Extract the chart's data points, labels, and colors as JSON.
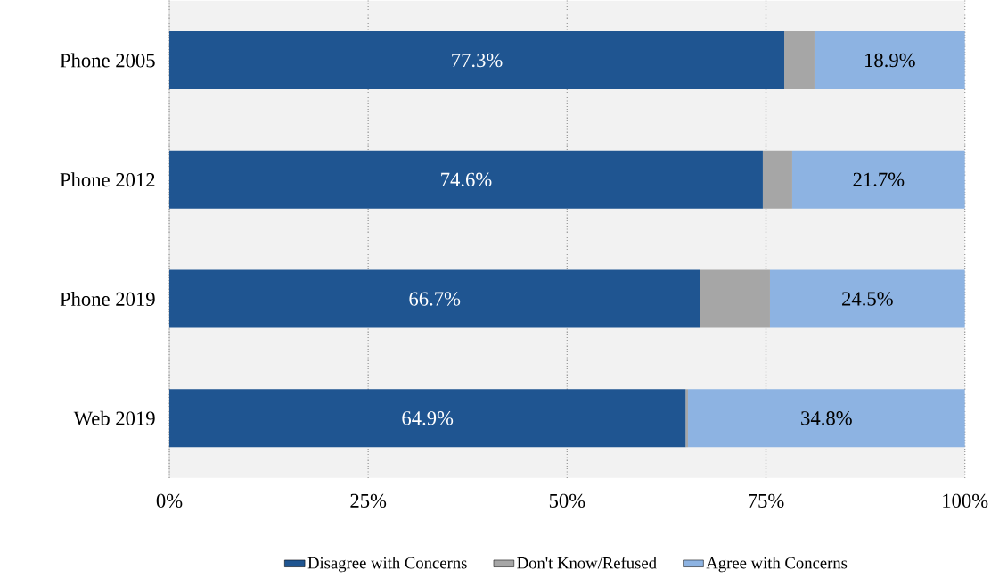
{
  "chart_data": {
    "type": "bar",
    "orientation": "horizontal",
    "stacked": true,
    "categories": [
      "Phone 2005",
      "Phone 2012",
      "Phone 2019",
      "Web 2019"
    ],
    "series": [
      {
        "name": "Disagree with Concerns",
        "color": "#1f5591",
        "values": [
          77.3,
          74.6,
          66.7,
          64.9
        ],
        "value_labels": [
          "77.3%",
          "74.6%",
          "66.7%",
          "64.9%"
        ]
      },
      {
        "name": "Don't Know/Refused",
        "color": "#a6a6a6",
        "values": [
          3.8,
          3.7,
          8.8,
          0.3
        ]
      },
      {
        "name": "Agree with Concerns",
        "color": "#8db3e2",
        "values": [
          18.9,
          21.7,
          24.5,
          34.8
        ],
        "value_labels": [
          "18.9%",
          "21.7%",
          "24.5%",
          "34.8%"
        ]
      }
    ],
    "xlim": [
      0,
      100
    ],
    "xticks": [
      {
        "value": 0,
        "label": "0%"
      },
      {
        "value": 25,
        "label": "25%"
      },
      {
        "value": 50,
        "label": "50%"
      },
      {
        "value": 75,
        "label": "75%"
      },
      {
        "value": 100,
        "label": "100%"
      }
    ],
    "grid": "x",
    "legend": "bottom"
  }
}
